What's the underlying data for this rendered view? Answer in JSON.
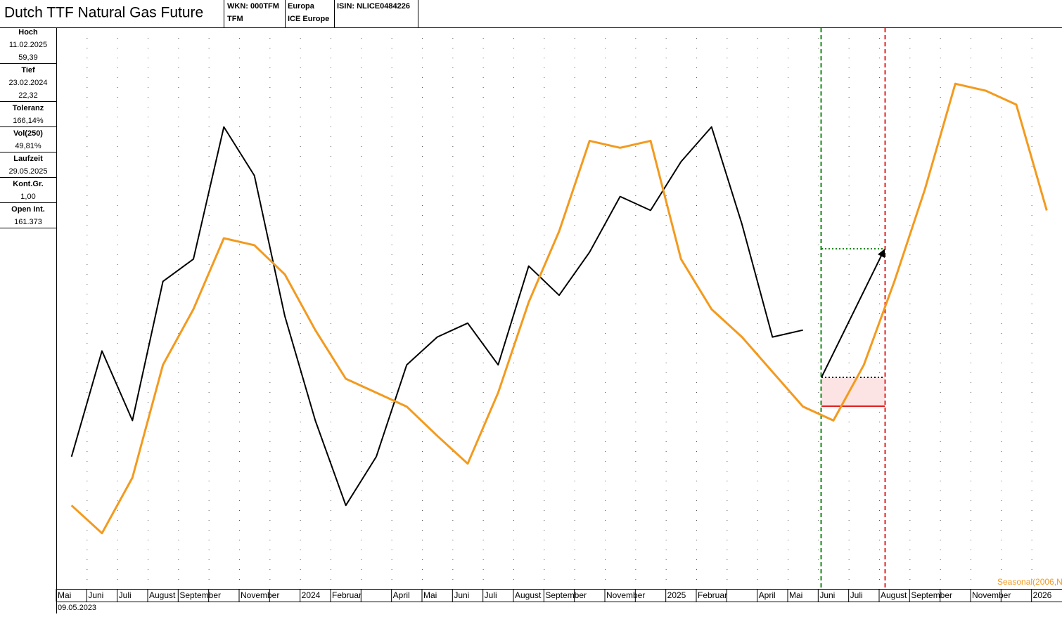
{
  "header": {
    "title": "Dutch TTF Natural Gas Future",
    "wkn": "WKN: 000TFM",
    "symbol": "TFM",
    "region": "Europa",
    "exchange": "ICE Europe",
    "isin": "ISIN: NLICE0484226"
  },
  "info_panel": [
    {
      "label": "Hoch",
      "lines": [
        "11.02.2025",
        "59,39"
      ]
    },
    {
      "label": "Tief",
      "lines": [
        "23.02.2024",
        "22,32"
      ]
    },
    {
      "label": "Toleranz",
      "lines": [
        "166,14%"
      ]
    },
    {
      "label": "Vol(250)",
      "lines": [
        "49,81%"
      ]
    },
    {
      "label": "Laufzeit",
      "lines": [
        "29.05.2025"
      ]
    },
    {
      "label": "Kont.Gr.",
      "lines": [
        "1,00"
      ]
    },
    {
      "label": "Open Int.",
      "lines": [
        "161.373"
      ]
    }
  ],
  "start_date": "09.05.2023",
  "chart_data": {
    "type": "line",
    "categories": [
      "Mai",
      "Juni",
      "Juli",
      "August",
      "September",
      null,
      "November",
      null,
      "2024",
      "Februar",
      null,
      "April",
      "Mai",
      "Juni",
      "Juli",
      "August",
      "September",
      null,
      "November",
      null,
      "2025",
      "Februar",
      null,
      "April",
      "Mai",
      "Juni",
      "Juli",
      "August",
      "September",
      null,
      "November",
      null,
      "2026"
    ],
    "series": [
      {
        "color": "#000000",
        "values": [
          29.7,
          37.3,
          32.3,
          42.3,
          43.9,
          53.4,
          49.9,
          39.8,
          32.3,
          26.2,
          29.7,
          36.3,
          38.3,
          39.3,
          36.3,
          43.4,
          41.3,
          44.4,
          48.4,
          47.4,
          50.9,
          53.4,
          46.4,
          38.3,
          38.8,
          null,
          null,
          null,
          null,
          null,
          null,
          null,
          null
        ]
      },
      {
        "name": "Seasonal(2006,N",
        "color": "#f39a1e",
        "values": [
          26.2,
          24.2,
          28.2,
          36.3,
          40.3,
          45.4,
          44.9,
          42.8,
          38.8,
          35.3,
          34.3,
          33.3,
          31.2,
          29.2,
          34.3,
          40.8,
          45.9,
          52.4,
          51.9,
          52.4,
          43.9,
          40.3,
          38.3,
          35.8,
          33.3,
          32.3,
          36.3,
          42.3,
          48.9,
          56.5,
          56.0,
          55.0,
          47.4
        ]
      }
    ],
    "ylim": [
      20.2,
      60.5
    ],
    "grid": true
  }
}
